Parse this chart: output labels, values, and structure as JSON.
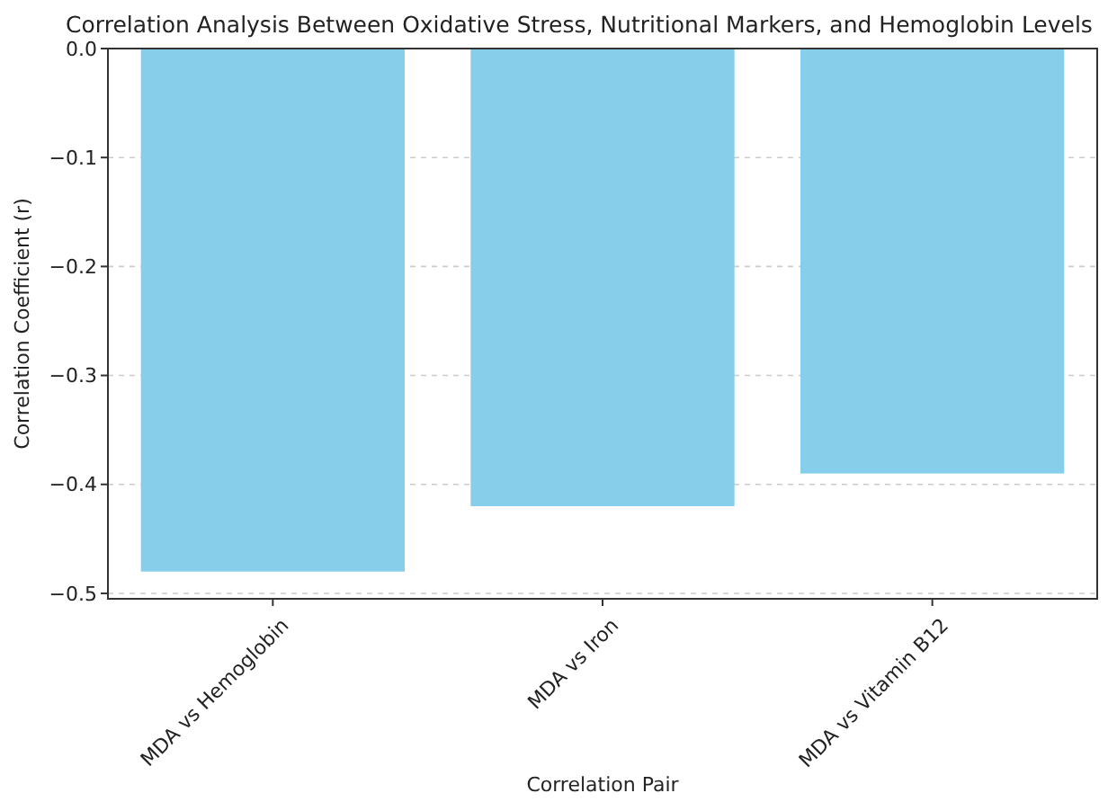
{
  "chart_data": {
    "type": "bar",
    "title": "Correlation Analysis Between Oxidative Stress, Nutritional Markers, and Hemoglobin Levels",
    "xlabel": "Correlation Pair",
    "ylabel": "Correlation Coefficient (r)",
    "categories": [
      "MDA vs Hemoglobin",
      "MDA vs Iron",
      "MDA vs Vitamin B12"
    ],
    "values": [
      -0.48,
      -0.42,
      -0.39
    ],
    "color": "#87ceeb",
    "ylim": [
      -0.505,
      0.0
    ],
    "yticks": [
      {
        "value": -0.5,
        "label": "−0.5"
      },
      {
        "value": -0.4,
        "label": "−0.4"
      },
      {
        "value": -0.3,
        "label": "−0.3"
      },
      {
        "value": -0.2,
        "label": "−0.2"
      },
      {
        "value": -0.1,
        "label": "−0.1"
      },
      {
        "value": 0,
        "label": "0.0"
      }
    ],
    "grid": "y"
  }
}
